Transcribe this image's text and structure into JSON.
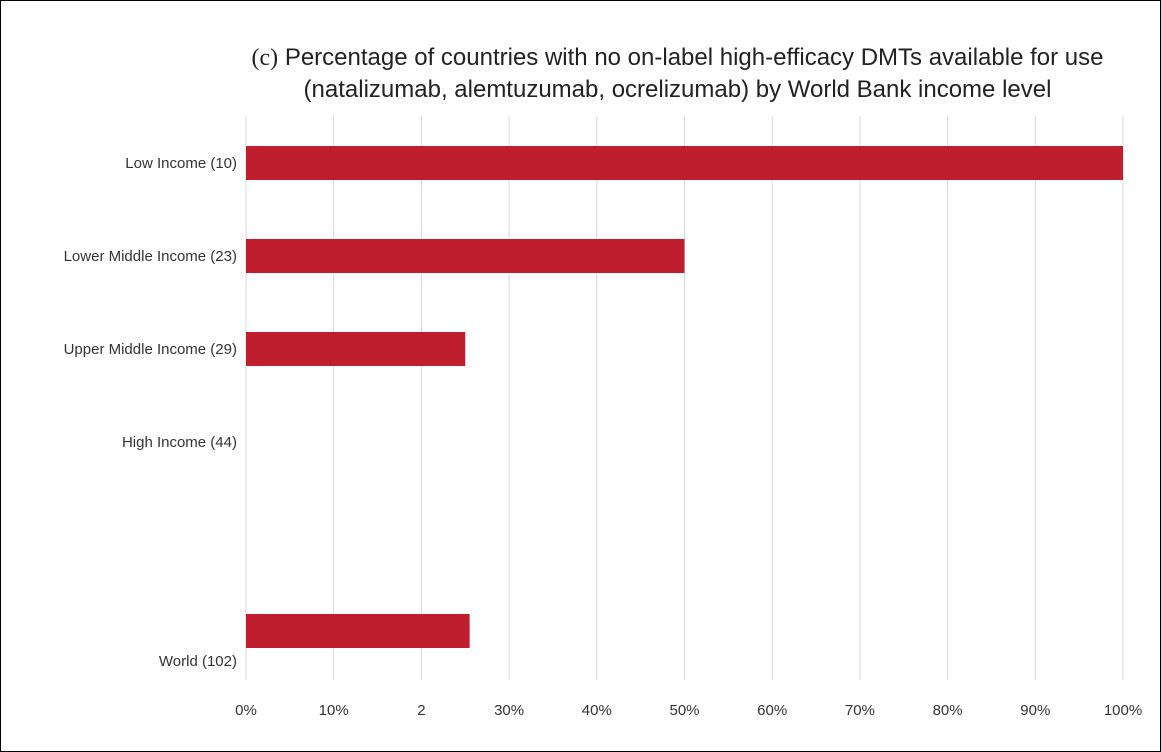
{
  "chart_data": {
    "type": "bar",
    "orientation": "horizontal",
    "title_prefix": "(c)",
    "title_line1": "Percentage of countries with no on-label high-efficacy DMTs available for use",
    "title_line2": "(natalizumab, alemtuzumab, ocrelizumab) by World Bank income level",
    "categories": [
      "Low Income (10)",
      "Lower Middle Income (23)",
      "Upper Middle Income (29)",
      "High Income (44)",
      "World (102)"
    ],
    "values": [
      100,
      50,
      25,
      0,
      25.5
    ],
    "xlim": [
      0,
      100
    ],
    "x_ticks": [
      "0%",
      "10%",
      "2",
      "30%",
      "40%",
      "50%",
      "60%",
      "70%",
      "80%",
      "90%",
      "100%"
    ],
    "bar_color": "#be1e2d",
    "grid_color": "#d9d9d9",
    "grid": "vertical"
  }
}
